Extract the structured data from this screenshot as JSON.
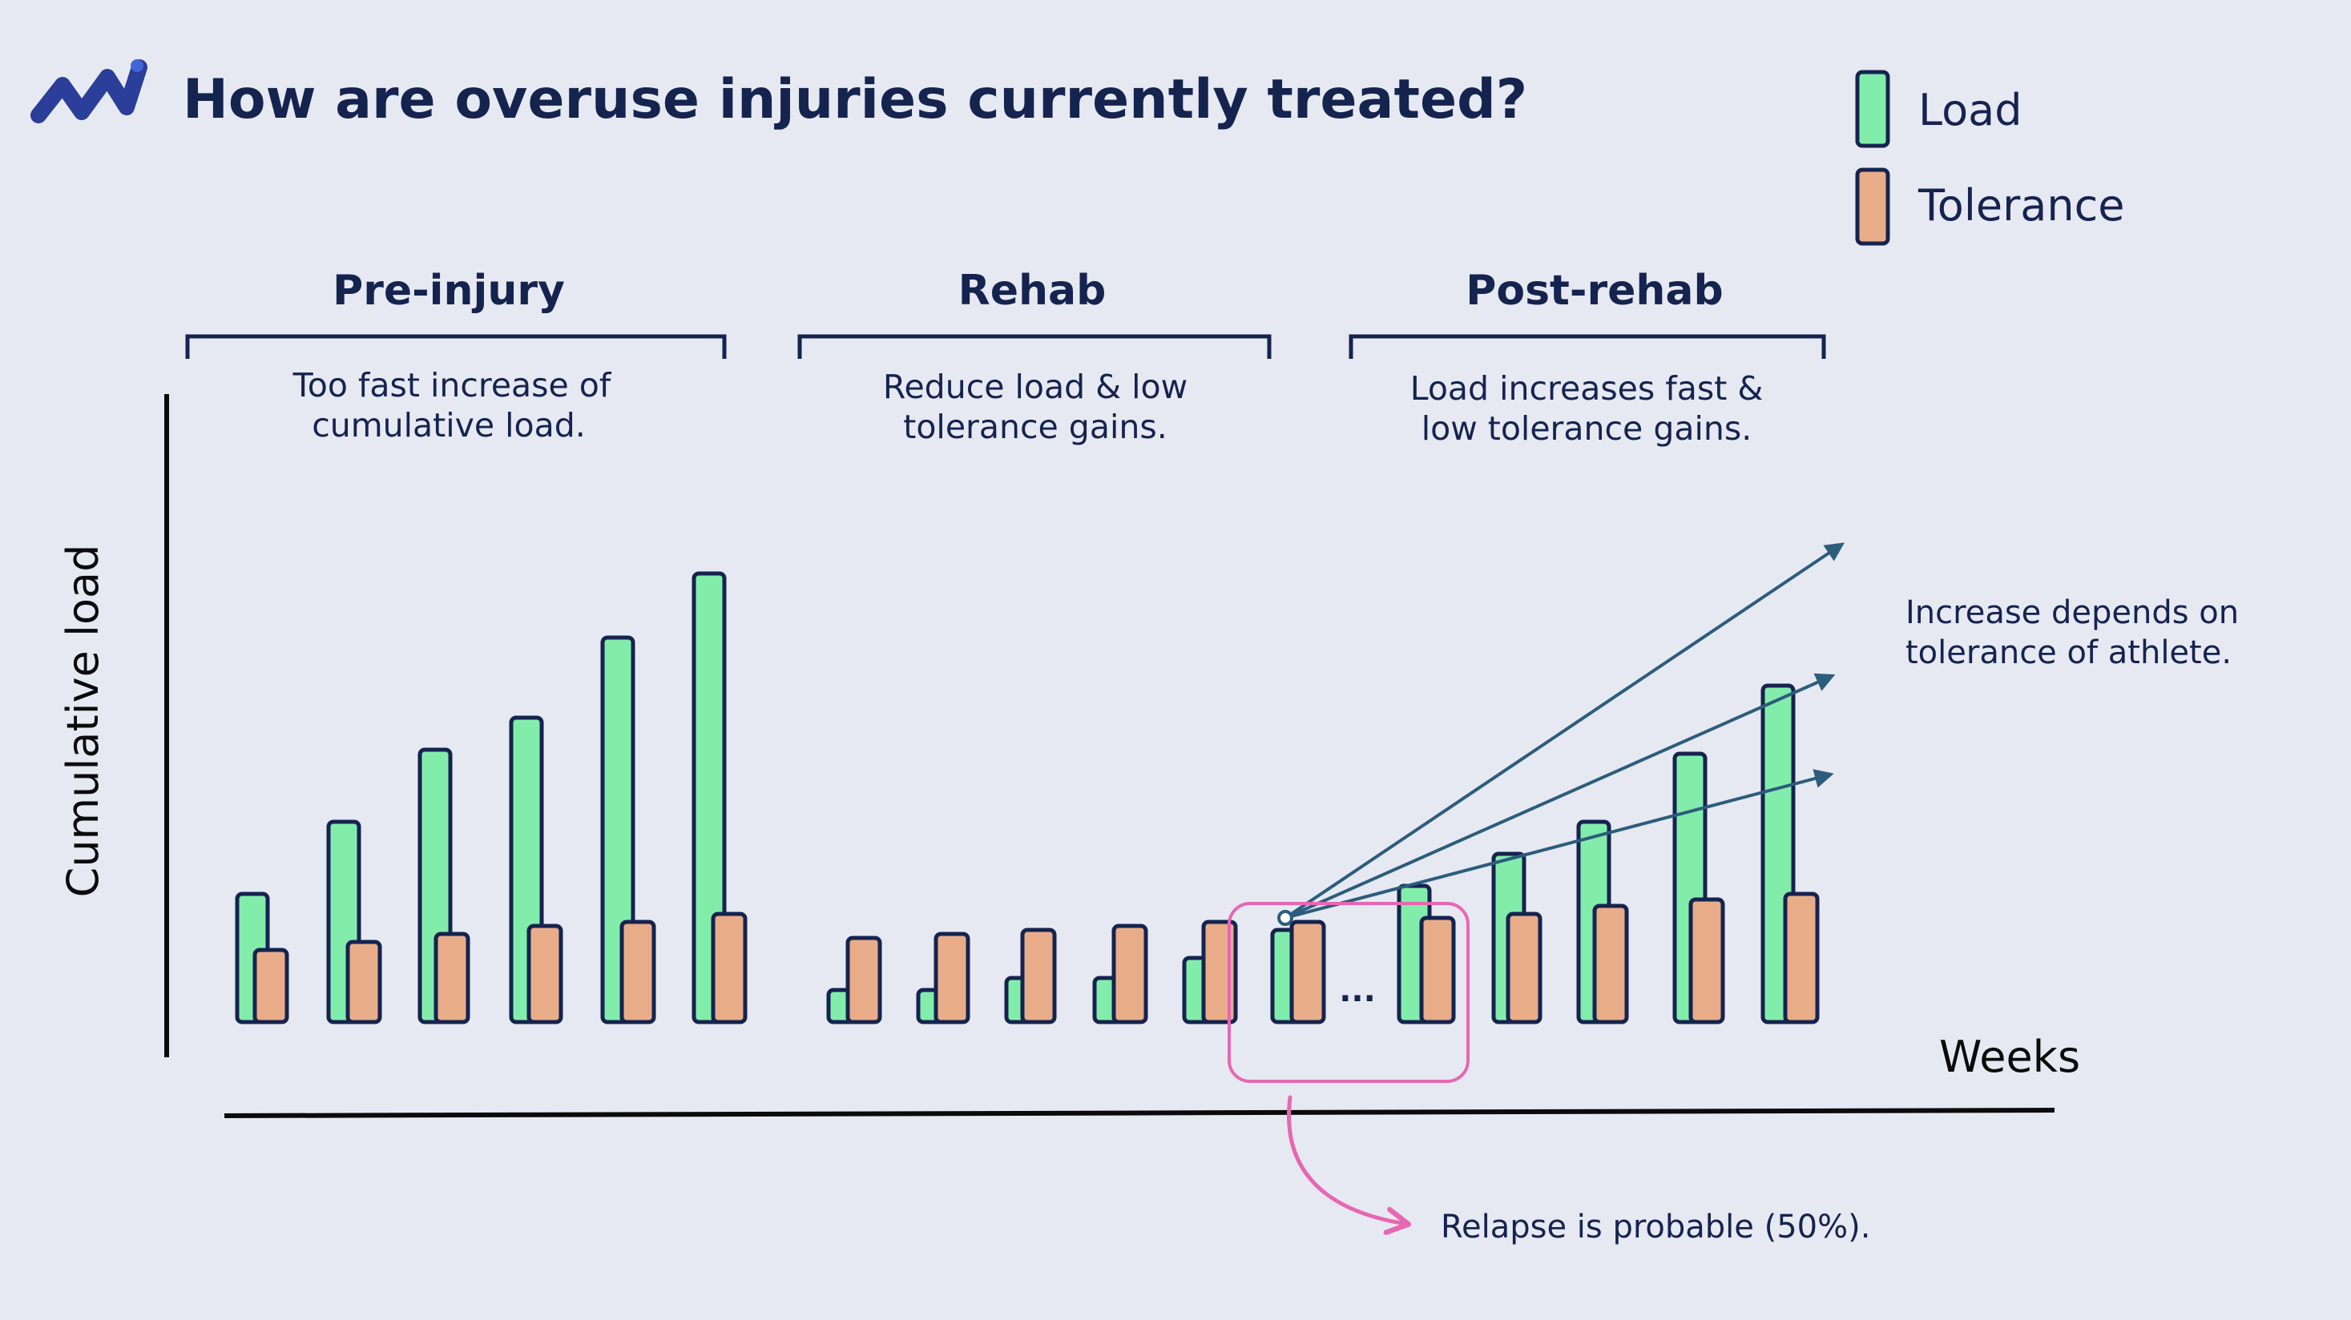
{
  "page": {
    "title": "How are overuse injuries currently treated?",
    "logo_icon": "wave-chart-logo-icon"
  },
  "colors": {
    "background": "#e7e9f2",
    "load": "#82edab",
    "tolerance": "#e9ac88",
    "outline": "#15234f",
    "arrow": "#2c5d7c",
    "relapse": "#e667b2",
    "text": "#15234f"
  },
  "chart_data": {
    "type": "bar",
    "title": "How are overuse injuries currently treated?",
    "xlabel": "Weeks",
    "ylabel": "Cumulative load",
    "ylim": [
      0,
      100
    ],
    "grid": false,
    "ticks_shown": false,
    "legend": {
      "placement": "top-right",
      "entries": [
        {
          "name": "Load",
          "color": "#82edab"
        },
        {
          "name": "Tolerance",
          "color": "#e9ac88"
        }
      ]
    },
    "series": [
      {
        "name": "Load",
        "values": [
          16,
          25,
          34,
          38,
          48,
          56,
          4,
          4,
          5.5,
          5.5,
          8,
          11.5,
          17,
          21,
          25,
          33.5,
          42
        ]
      },
      {
        "name": "Tolerance",
        "values": [
          9,
          10,
          11,
          12,
          12.5,
          13.5,
          10.5,
          11,
          11.5,
          12,
          12.5,
          12.5,
          13,
          13.5,
          14.5,
          15.3,
          16
        ]
      }
    ],
    "phases": [
      {
        "label": "Pre-injury",
        "description_lines": [
          "Too fast increase of",
          "cumulative load."
        ],
        "bar_count": 6
      },
      {
        "label": "Rehab",
        "description_lines": [
          "Reduce load & low",
          "tolerance gains."
        ],
        "bar_count": 6
      },
      {
        "label": "Post-rehab",
        "description_lines": [
          "Load increases fast &",
          "low tolerance gains."
        ],
        "bar_count": 5
      }
    ],
    "ellipsis": "...",
    "annotations": {
      "trajectory_note_lines": [
        "Increase depends on",
        "tolerance of athlete."
      ],
      "trajectory_arrow_count": 3,
      "relapse_note": "Relapse is probable (50%)."
    }
  }
}
